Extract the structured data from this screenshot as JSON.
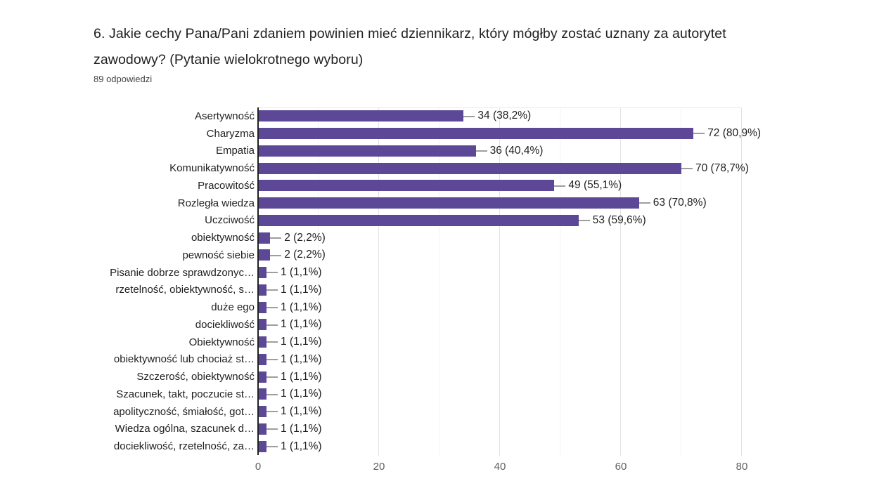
{
  "question": {
    "title": "6. Jakie cechy Pana/Pani zdaniem powinien mieć dziennikarz, który mógłby zostać uznany za autorytet zawodowy? (Pytanie wielokrotnego wyboru)",
    "responses_count_label": "89 odpowiedzi"
  },
  "chart_data": {
    "type": "bar",
    "orientation": "horizontal",
    "categories": [
      "Asertywność",
      "Charyzma",
      "Empatia",
      "Komunikatywność",
      "Pracowitość",
      "Rozległa wiedza",
      "Uczciwość",
      "obiektywność",
      "pewność siebie",
      "Pisanie dobrze sprawdzonyc…",
      "rzetelność, obiektywność, s…",
      "duże ego",
      "dociekliwość",
      "Obiektywność",
      "obiektywność lub chociaż st…",
      "Szczerość, obiektywność",
      "Szacunek, takt, poczucie st…",
      "apolityczność, śmiałość, got…",
      "Wiedza ogólna, szacunek d…",
      "dociekliwość, rzetelność, za…"
    ],
    "values": [
      34,
      72,
      36,
      70,
      49,
      63,
      53,
      2,
      2,
      1,
      1,
      1,
      1,
      1,
      1,
      1,
      1,
      1,
      1,
      1
    ],
    "value_labels": [
      "34 (38,2%)",
      "72 (80,9%)",
      "36 (40,4%)",
      "70 (78,7%)",
      "49 (55,1%)",
      "63 (70,8%)",
      "53 (59,6%)",
      "2 (2,2%)",
      "2 (2,2%)",
      "1 (1,1%)",
      "1 (1,1%)",
      "1 (1,1%)",
      "1 (1,1%)",
      "1 (1,1%)",
      "1 (1,1%)",
      "1 (1,1%)",
      "1 (1,1%)",
      "1 (1,1%)",
      "1 (1,1%)",
      "1 (1,1%)"
    ],
    "xlim": [
      0,
      80
    ],
    "xticks": [
      0,
      20,
      40,
      60,
      80
    ],
    "minor_gridlines": [
      10,
      30,
      50,
      70
    ],
    "grid": true,
    "legend": "none",
    "bar_color": "#5c4897",
    "axis_line_color": "#212121",
    "connector_color": "#9e9e9e",
    "gridline_major_color": "#e2e2e2",
    "gridline_minor_color": "#f2f2f2"
  }
}
